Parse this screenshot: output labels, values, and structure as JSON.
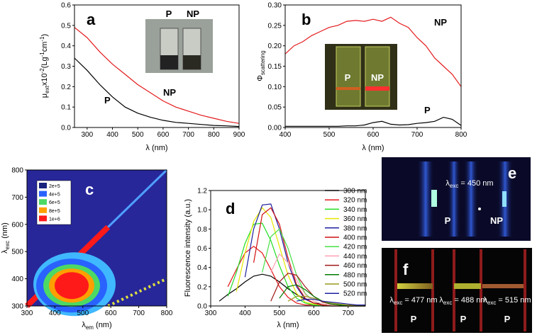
{
  "chart_data": [
    {
      "type": "line",
      "panel": "a",
      "xlabel": "λ (nm)",
      "ylabel": [
        "μ",
        "ext",
        "x10",
        "-2",
        "(Lg",
        "-1",
        "cm",
        "-1",
        ")"
      ],
      "x": [
        250,
        300,
        350,
        400,
        450,
        500,
        550,
        600,
        650,
        700,
        750,
        800,
        850,
        900
      ],
      "series": [
        {
          "name": "P",
          "color": "#000000",
          "values": [
            0.34,
            0.28,
            0.21,
            0.15,
            0.1,
            0.07,
            0.05,
            0.035,
            0.025,
            0.02,
            0.015,
            0.01,
            0.008,
            0.005
          ]
        },
        {
          "name": "NP",
          "color": "#e41a1c",
          "values": [
            0.49,
            0.44,
            0.37,
            0.31,
            0.26,
            0.21,
            0.17,
            0.13,
            0.1,
            0.08,
            0.06,
            0.045,
            0.03,
            0.02
          ]
        }
      ],
      "xlim": [
        250,
        900
      ],
      "xticks": [
        300,
        400,
        500,
        600,
        700,
        800,
        900
      ],
      "ylim": [
        0,
        0.6
      ],
      "yticks": [
        {
          "value": 0,
          "label": "0.0"
        },
        0.1,
        0.2,
        0.3,
        0.4,
        0.5,
        0.6
      ],
      "inset_labels": [
        "P",
        "NP"
      ]
    },
    {
      "type": "line",
      "panel": "b",
      "xlabel": "λ (nm)",
      "ylabel": [
        "Φ",
        "scattering"
      ],
      "x": [
        400,
        420,
        440,
        460,
        480,
        500,
        520,
        540,
        560,
        580,
        600,
        620,
        640,
        660,
        680,
        700,
        720,
        740,
        760,
        780,
        800
      ],
      "series": [
        {
          "name": "NP",
          "color": "#e41a1c",
          "values": [
            0.18,
            0.2,
            0.21,
            0.225,
            0.235,
            0.245,
            0.25,
            0.26,
            0.262,
            0.26,
            0.265,
            0.26,
            0.27,
            0.255,
            0.245,
            0.22,
            0.2,
            0.17,
            0.15,
            0.13,
            0.1
          ]
        },
        {
          "name": "P",
          "color": "#000000",
          "values": [
            0.003,
            0.003,
            0.003,
            0.003,
            0.003,
            0.003,
            0.003,
            0.004,
            0.004,
            0.006,
            0.012,
            0.015,
            0.008,
            0.006,
            0.007,
            0.01,
            0.012,
            0.015,
            0.025,
            0.02,
            0.005
          ]
        }
      ],
      "xlim": [
        400,
        800
      ],
      "xticks": [
        400,
        500,
        600,
        700,
        800
      ],
      "ylim": [
        0,
        0.3
      ],
      "yticks": [
        {
          "value": 0,
          "label": "0.00"
        },
        0.05,
        {
          "value": 0.1,
          "label": "0.10"
        },
        0.15,
        {
          "value": 0.2,
          "label": "0.20"
        },
        0.25,
        {
          "value": 0.3,
          "label": "0.30"
        }
      ],
      "inset_labels": [
        "P",
        "NP"
      ]
    },
    {
      "type": "contour",
      "panel": "c",
      "xlabel": [
        "λ",
        "em",
        " (nm)"
      ],
      "ylabel": [
        "λ",
        "exc",
        " (nm)"
      ],
      "levels": [
        {
          "value": 200000,
          "label": "2e+5"
        },
        {
          "value": 400000,
          "label": "4e+5"
        },
        {
          "value": 600000,
          "label": "6e+5"
        },
        {
          "value": 800000,
          "label": "8e+5"
        },
        {
          "value": 1000000,
          "label": "1e+6"
        }
      ],
      "colors": [
        "#1a237e",
        "#2962ff",
        "#4cd964",
        "#ffa000",
        "#ff1a1a"
      ],
      "xlim": [
        300,
        800
      ],
      "xticks": [
        300,
        400,
        500,
        600,
        700,
        800
      ],
      "ylim": [
        300,
        800
      ],
      "yticks": [
        300,
        400,
        500,
        600,
        700,
        800
      ]
    },
    {
      "type": "line",
      "panel": "d",
      "xlabel": "λ (nm)",
      "ylabel": "Fluorescence intensity (a.u.)",
      "x": [
        300,
        325,
        350,
        375,
        400,
        425,
        450,
        475,
        500,
        525,
        550,
        575,
        600,
        625,
        650,
        675,
        700,
        725,
        750
      ],
      "series": [
        {
          "name": "300 nm",
          "color": "#000000",
          "values": [
            null,
            0.05,
            0.12,
            0.18,
            0.25,
            0.31,
            0.33,
            0.31,
            0.25,
            0.18,
            0.12,
            0.07,
            0.03,
            0.02,
            0.01,
            0.01,
            0,
            0,
            0
          ]
        },
        {
          "name": "320 nm",
          "color": "#e41a1c",
          "values": [
            null,
            null,
            0.2,
            0.38,
            0.55,
            0.62,
            0.55,
            0.38,
            0.2,
            0.09,
            0.03,
            0.01,
            0.01,
            0,
            0,
            0,
            0,
            0,
            0
          ]
        },
        {
          "name": "340 nm",
          "color": "#22dd22",
          "values": [
            null,
            null,
            0.1,
            0.35,
            0.65,
            0.85,
            0.86,
            0.68,
            0.42,
            0.2,
            0.08,
            0.03,
            0.01,
            0,
            0,
            0,
            0,
            0,
            0
          ]
        },
        {
          "name": "360 nm",
          "color": "#e6e600",
          "values": [
            null,
            null,
            null,
            0.15,
            0.55,
            0.88,
            1.02,
            0.92,
            0.62,
            0.32,
            0.13,
            0.04,
            0.02,
            0.01,
            0.01,
            0.01,
            0.01,
            0.01,
            0.01
          ]
        },
        {
          "name": "380 nm",
          "color": "#1f1f9c",
          "values": [
            null,
            null,
            null,
            null,
            0.3,
            0.8,
            1.05,
            1.06,
            0.8,
            0.45,
            0.2,
            0.07,
            0.03,
            0.01,
            0,
            0,
            0,
            0,
            0
          ]
        },
        {
          "name": "400 nm",
          "color": "#d01010",
          "values": [
            null,
            null,
            null,
            null,
            null,
            0.45,
            0.95,
            1.02,
            0.85,
            0.5,
            0.22,
            0.08,
            0.03,
            0.01,
            0,
            0,
            0,
            0,
            0
          ]
        },
        {
          "name": "420 nm",
          "color": "#44e044",
          "values": [
            null,
            null,
            null,
            null,
            null,
            null,
            0.35,
            0.72,
            0.8,
            0.6,
            0.32,
            0.13,
            0.05,
            0.02,
            0.01,
            0,
            0,
            0,
            0
          ]
        },
        {
          "name": "440 nm",
          "color": "#ffa0b4",
          "values": [
            null,
            null,
            null,
            null,
            null,
            null,
            null,
            0.35,
            0.54,
            0.45,
            0.27,
            0.12,
            0.05,
            0.02,
            0.01,
            0,
            0,
            0,
            0
          ]
        },
        {
          "name": "460 nm",
          "color": "#a01818",
          "values": [
            null,
            null,
            null,
            null,
            null,
            null,
            null,
            0.05,
            0.25,
            0.34,
            0.32,
            0.2,
            0.1,
            0.04,
            0.02,
            0.01,
            0,
            0,
            0
          ]
        },
        {
          "name": "480 nm",
          "color": "#007a00",
          "values": [
            null,
            null,
            null,
            null,
            null,
            null,
            null,
            null,
            0.08,
            0.2,
            0.22,
            0.17,
            0.1,
            0.05,
            0.02,
            0.01,
            0,
            0,
            0
          ]
        },
        {
          "name": "500 nm",
          "color": "#9a9a20",
          "values": [
            null,
            null,
            null,
            null,
            null,
            null,
            null,
            null,
            null,
            0.05,
            0.1,
            0.1,
            0.08,
            0.05,
            0.03,
            0.02,
            0.01,
            0.01,
            0
          ]
        },
        {
          "name": "520 nm",
          "color": "#2020a0",
          "values": [
            null,
            null,
            null,
            null,
            null,
            null,
            null,
            null,
            null,
            null,
            0.05,
            0.07,
            0.07,
            0.05,
            0.04,
            0.03,
            0.02,
            0.01,
            0.01
          ]
        }
      ],
      "xlim": [
        300,
        750
      ],
      "xticks": [
        300,
        400,
        500,
        600,
        700
      ],
      "ylim": [
        0,
        1.2
      ],
      "yticks": [
        {
          "value": 0,
          "label": "0.0"
        },
        0.2,
        0.4,
        0.6,
        0.8,
        {
          "value": 1,
          "label": "1.0"
        },
        1.2
      ]
    }
  ],
  "photos": [
    {
      "panel": "e",
      "labels": [
        [
          "λ",
          "exc",
          " = 450 nm"
        ]
      ],
      "samples": [
        "P",
        "NP"
      ]
    },
    {
      "panel": "f",
      "labels": [
        [
          "λ",
          "exc",
          " = 477 nm"
        ],
        [
          "λ",
          "exc",
          " = 488 nm"
        ],
        [
          "λ",
          "exc",
          " = 515 nm"
        ]
      ],
      "samples": [
        "P",
        "P",
        "P"
      ]
    }
  ]
}
